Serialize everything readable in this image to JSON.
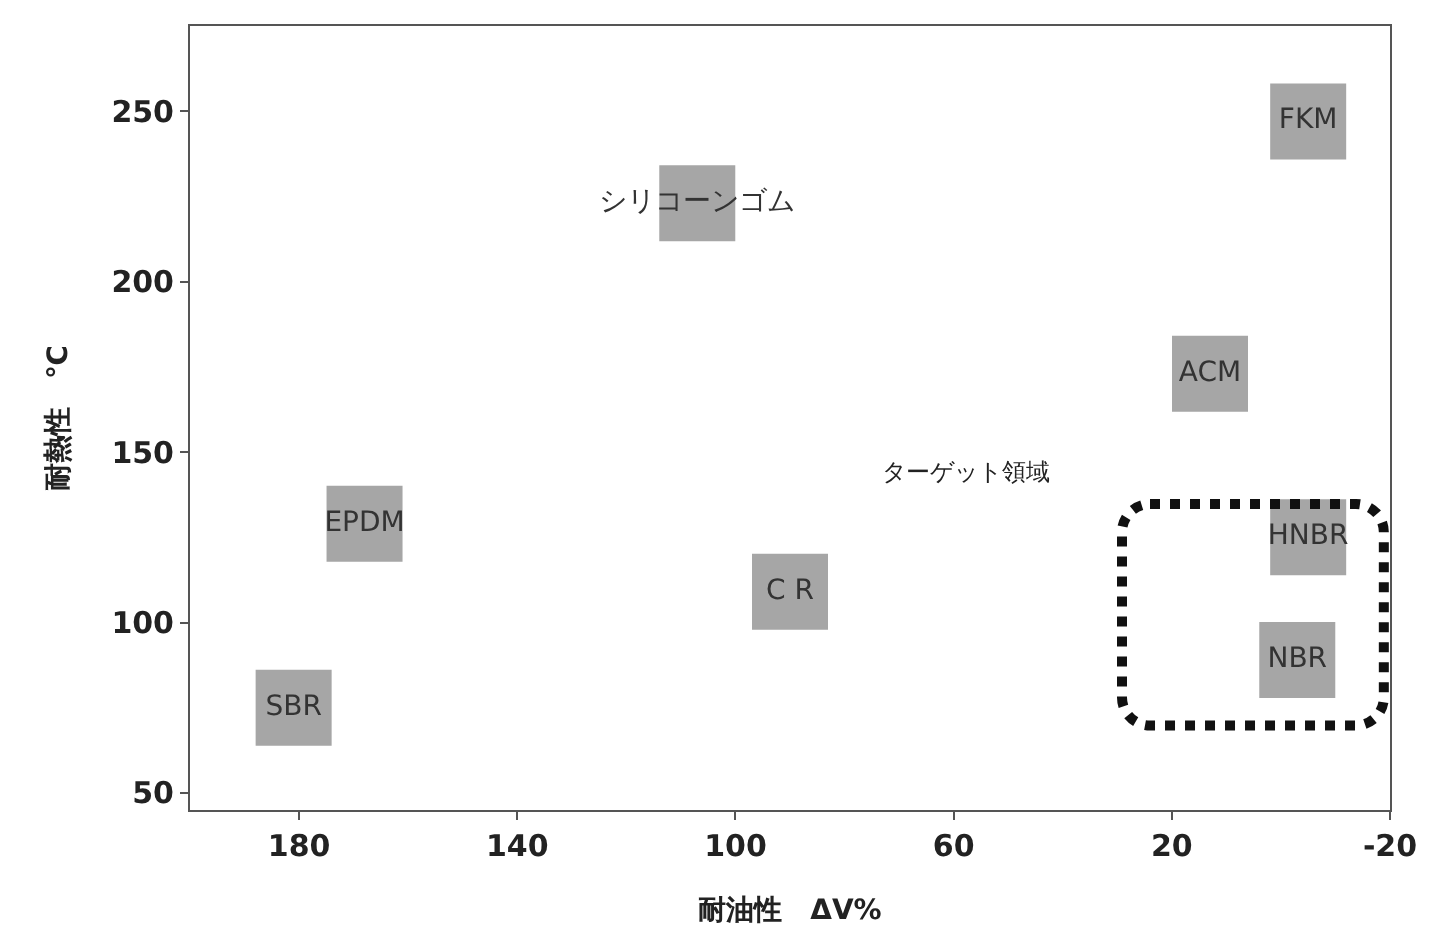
{
  "chart_data": {
    "type": "scatter",
    "xlabel": "耐油性　ΔV%",
    "ylabel": "耐熱性　℃",
    "x": [
      181,
      168,
      107,
      90,
      13,
      -5,
      -5,
      -3
    ],
    "values": [
      75,
      129,
      223,
      109,
      173,
      247,
      125,
      89
    ],
    "value_labels": [
      "SBR",
      "EPDM",
      "シリコーンゴム",
      "C R",
      "ACM",
      "FKM",
      "HNBR",
      "NBR"
    ],
    "color": "#a6a6a6",
    "marker": "square",
    "xlim": [
      200,
      -20
    ],
    "xticks": [
      180,
      140,
      100,
      60,
      20,
      -20
    ],
    "ylim": [
      45,
      275
    ],
    "yticks": [
      50,
      100,
      150,
      200,
      250
    ],
    "annotations": [
      "ターゲット領域"
    ],
    "grid": false
  }
}
